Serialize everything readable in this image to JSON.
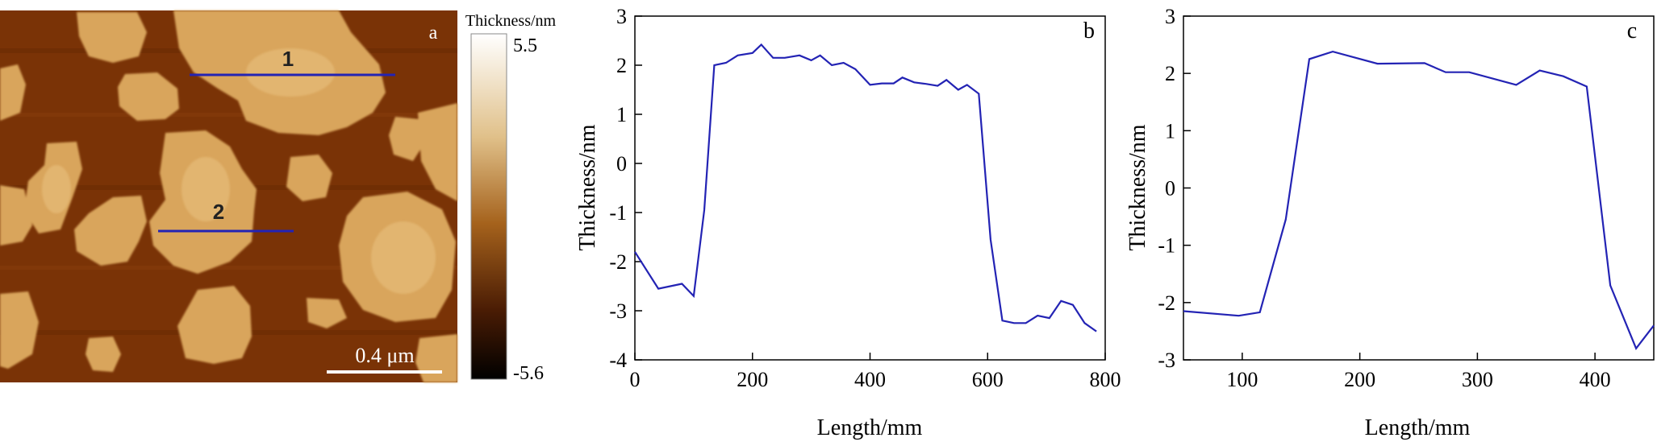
{
  "panel_a": {
    "letter": "a",
    "line_labels": [
      "1",
      "2"
    ],
    "scalebar_label": "0.4 μm",
    "colorbar": {
      "title": "Thickness/nm",
      "max_label": "5.5",
      "min_label": "-5.6"
    },
    "colors": {
      "background": "#7a3306",
      "flake": "#d9a55c",
      "flake_highlight": "#e8c07e",
      "profile_line": "#2323b4"
    }
  },
  "chart_data": [
    {
      "type": "line",
      "panel": "b",
      "xlabel": "Length/mm",
      "ylabel": "Thickness/nm",
      "xlim": [
        0,
        800
      ],
      "ylim": [
        -4,
        3
      ],
      "xticks": [
        0,
        200,
        400,
        600,
        800
      ],
      "yticks": [
        -4,
        -3,
        -2,
        -1,
        0,
        1,
        2,
        3
      ],
      "grid": false,
      "color": "#2323b4",
      "x": [
        0,
        40,
        80,
        100,
        118,
        135,
        155,
        175,
        200,
        215,
        235,
        255,
        280,
        300,
        315,
        335,
        355,
        375,
        400,
        420,
        440,
        455,
        475,
        495,
        515,
        530,
        550,
        565,
        585,
        605,
        625,
        645,
        665,
        685,
        705,
        725,
        745,
        765,
        785
      ],
      "y": [
        -1.8,
        -2.55,
        -2.45,
        -2.7,
        -0.95,
        2.0,
        2.05,
        2.2,
        2.25,
        2.42,
        2.15,
        2.15,
        2.2,
        2.1,
        2.2,
        2.0,
        2.05,
        1.92,
        1.6,
        1.63,
        1.63,
        1.75,
        1.65,
        1.62,
        1.58,
        1.7,
        1.5,
        1.6,
        1.42,
        -1.55,
        -3.2,
        -3.25,
        -3.25,
        -3.1,
        -3.15,
        -2.8,
        -2.88,
        -3.25,
        -3.42
      ]
    },
    {
      "type": "line",
      "panel": "c",
      "xlabel": "Length/mm",
      "ylabel": "Thickness/nm",
      "xlim": [
        50,
        450
      ],
      "ylim": [
        -3,
        3
      ],
      "xticks": [
        100,
        200,
        300,
        400
      ],
      "yticks": [
        -3,
        -2,
        -1,
        0,
        1,
        2,
        3
      ],
      "grid": false,
      "color": "#2323b4",
      "x": [
        50,
        97,
        115,
        137,
        157,
        177,
        215,
        255,
        273,
        293,
        333,
        353,
        373,
        393,
        413,
        435,
        450
      ],
      "y": [
        -2.15,
        -2.23,
        -2.17,
        -0.55,
        2.25,
        2.38,
        2.17,
        2.18,
        2.02,
        2.02,
        1.8,
        2.05,
        1.95,
        1.77,
        -1.7,
        -2.8,
        -2.4
      ]
    }
  ]
}
